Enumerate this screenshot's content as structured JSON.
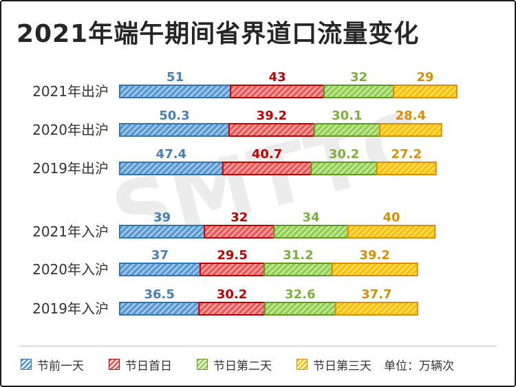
{
  "title": "2021年端午期间省界道口流量变化",
  "unit": "单位：万辆次",
  "colors": {
    "series": [
      {
        "fill": "#5b9bd5",
        "stroke": "#2e75b6",
        "text": "#4a7fb5"
      },
      {
        "fill": "#ee5a5a",
        "stroke": "#c00000",
        "text": "#c00000"
      },
      {
        "fill": "#92d050",
        "stroke": "#5f9a1e",
        "text": "#7ab03c"
      },
      {
        "fill": "#ffc000",
        "stroke": "#d98e00",
        "text": "#d98e00"
      }
    ]
  },
  "chart_data": {
    "type": "bar",
    "orientation": "horizontal",
    "stacked": true,
    "categories": [
      "2021年出沪",
      "2020年出沪",
      "2019年出沪",
      "2021年入沪",
      "2020年入沪",
      "2019年入沪"
    ],
    "series": [
      {
        "name": "节前一天",
        "values": [
          "51",
          "50.3",
          "47.4",
          "39",
          "37",
          "36.5"
        ]
      },
      {
        "name": "节日首日",
        "values": [
          "43",
          "39.2",
          "40.7",
          "32",
          "29.5",
          "30.2"
        ]
      },
      {
        "name": "节日第二天",
        "values": [
          "32",
          "30.1",
          "30.2",
          "34",
          "31.2",
          "32.6"
        ]
      },
      {
        "name": "节日第三天",
        "values": [
          "29",
          "28.4",
          "27.2",
          "40",
          "39.2",
          "37.7"
        ]
      }
    ],
    "legend_position": "bottom",
    "grid": false,
    "watermark": "SMTTC"
  }
}
